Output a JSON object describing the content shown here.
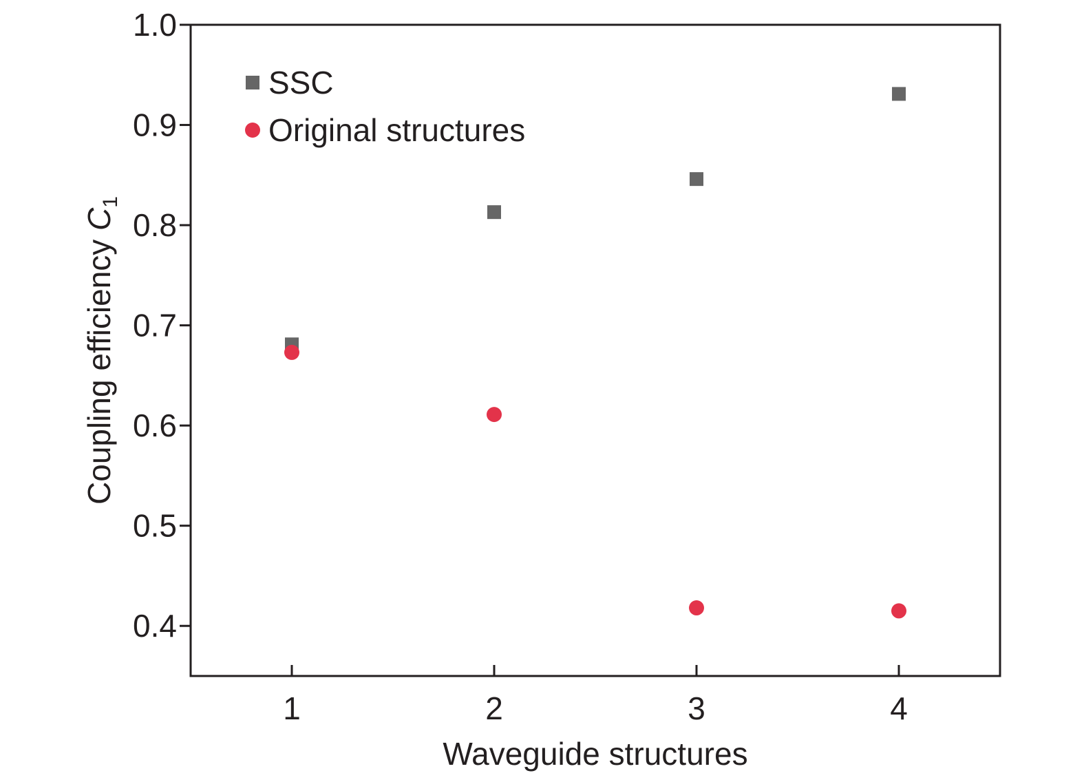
{
  "chart_data": {
    "type": "scatter",
    "xlabel": "Waveguide structures",
    "ylabel_main": "Coupling efficiency ",
    "ylabel_var": "C",
    "ylabel_sub": "1",
    "xlim": [
      0.5,
      4.5
    ],
    "ylim": [
      0.35,
      1.0
    ],
    "xticks": [
      1,
      2,
      3,
      4
    ],
    "xtick_labels": [
      "1",
      "2",
      "3",
      "4"
    ],
    "yticks": [
      0.4,
      0.5,
      0.6,
      0.7,
      0.8,
      0.9,
      1.0
    ],
    "ytick_labels": [
      "0.4",
      "0.5",
      "0.6",
      "0.7",
      "0.8",
      "0.9",
      "1.0"
    ],
    "grid": false,
    "legend_position": "top-left",
    "series": [
      {
        "name": "SSC",
        "marker": "square",
        "color": "#666666",
        "x": [
          1,
          2,
          3,
          4
        ],
        "y": [
          0.681,
          0.813,
          0.846,
          0.931
        ]
      },
      {
        "name": "Original structures",
        "marker": "circle",
        "color": "#e3334a",
        "x": [
          1,
          2,
          3,
          4
        ],
        "y": [
          0.673,
          0.611,
          0.418,
          0.415
        ]
      }
    ]
  }
}
